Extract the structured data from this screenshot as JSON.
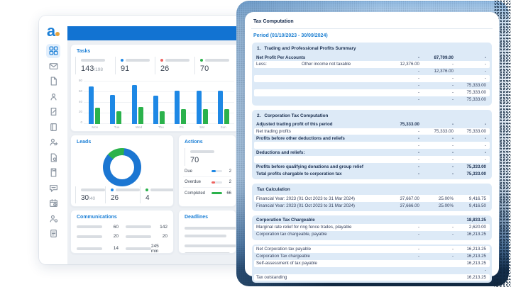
{
  "app": {
    "accent": "#1b7fd6",
    "navy": "#16304e",
    "topbar_color": "#1273d2"
  },
  "left": {
    "logo": "a",
    "active_icon": "dashboard",
    "sidebar_icons": [
      "dashboard",
      "mail",
      "document",
      "contacts",
      "edit-document",
      "ledger",
      "add-user",
      "report",
      "bookmark-document",
      "chat",
      "calendar",
      "user-settings",
      "file-text"
    ],
    "tasks": {
      "title": "Tasks",
      "stats": [
        {
          "value": "143",
          "suffix": "/198"
        },
        {
          "value": "91",
          "dot": "#1e88e5"
        },
        {
          "value": "26",
          "dot": "#ef6461"
        },
        {
          "value": "70",
          "dot": "#2bb24c"
        }
      ],
      "chart": {
        "type": "bar",
        "categories": [
          "Mon",
          "Tue",
          "Wed",
          "Thu",
          "Fri",
          "Sat",
          "Sun"
        ],
        "series": [
          {
            "name": "primary",
            "color": "#1e88e5",
            "values": [
              70,
              54,
              73,
              53,
              63,
              63,
              63
            ]
          },
          {
            "name": "secondary",
            "color": "#2bb24c",
            "values": [
              31,
              24,
              32,
              24,
              28,
              28,
              28
            ]
          }
        ],
        "yticks": [
          0,
          20,
          40,
          60,
          80
        ],
        "ymax": 80
      }
    },
    "leads": {
      "title": "Leads",
      "donut": {
        "start_deg": 312,
        "segments": [
          {
            "color": "#2bb24c",
            "deg": 55
          },
          {
            "color": "#1b76d2",
            "deg": 305
          }
        ]
      },
      "stats": [
        {
          "value": "30",
          "suffix": "/40"
        },
        {
          "value": "26",
          "dot": "#1e88e5"
        },
        {
          "value": "4",
          "dot": "#2bb24c"
        }
      ]
    },
    "actions": {
      "title": "Actions",
      "stat": {
        "value": "70"
      },
      "rows": [
        {
          "label": "Due",
          "value": "2",
          "color": "#1e88e5",
          "pct": 38
        },
        {
          "label": "Overdue",
          "value": "2",
          "color": "#ef6461",
          "pct": 30
        },
        {
          "label": "Completed",
          "value": "66",
          "color": "#2bb24c",
          "pct": 100
        }
      ]
    },
    "communications": {
      "title": "Communications",
      "rows": [
        {
          "left": "60",
          "right": "142"
        },
        {
          "left": "20",
          "right": "20"
        },
        {
          "left": "14",
          "right": "245 min"
        }
      ]
    },
    "deadlines": {
      "title": "Deadlines",
      "bars": [
        96,
        74,
        96,
        80
      ]
    }
  },
  "right": {
    "title": "Tax Computation",
    "period": "Period (01/10/2023 - 30/09/2024)",
    "sections": [
      {
        "num": "1.",
        "header": "Trading and Professional Profits Summary",
        "rows": [
          {
            "l": "Net Profit Per Accounts",
            "c1": "-",
            "c2": "87,709.00",
            "c3": "-",
            "b": true
          },
          {
            "l": "Less:",
            "l2": "Other income not taxable",
            "c1": "12,376.00",
            "c2": "-",
            "c3": "-"
          },
          {
            "l": "",
            "c1": "-",
            "c2": "12,376.00",
            "c3": "-"
          },
          {
            "l": "",
            "c1": "-",
            "c2": "-",
            "c3": "-"
          },
          {
            "l": "",
            "c1": "-",
            "c2": "-",
            "c3": "75,333.00"
          },
          {
            "l": "",
            "c1": "-",
            "c2": "-",
            "c3": "75,333.00"
          },
          {
            "l": "",
            "c1": "-",
            "c2": "-",
            "c3": "75,333.00"
          }
        ]
      },
      {
        "num": "2.",
        "header": "Corporation Tax Computation",
        "rows": [
          {
            "l": "Adjusted trading profit of this period",
            "c1": "75,333.00",
            "c2": "-",
            "c3": "-",
            "b": true
          },
          {
            "l": "Net trading profits",
            "c1": "-",
            "c2": "75,333.00",
            "c3": "75,333.00"
          },
          {
            "l": "Profits before other deductions and reliefs",
            "c1": "-",
            "c2": "-",
            "c3": "-",
            "b": true
          },
          {
            "l": "",
            "c1": "-",
            "c2": "-",
            "c3": "-"
          },
          {
            "l": "Deductions and reliefs:",
            "c1": "-",
            "c2": "-",
            "c3": "-",
            "b": true
          },
          {
            "l": "",
            "c1": "-",
            "c2": "-",
            "c3": "-"
          },
          {
            "l": "Profits before qualifying donations and group relief",
            "c1": "-",
            "c2": "-",
            "c3": "75,333.00",
            "b": true
          },
          {
            "l": "Total profits chargable to corporation tax",
            "c1": "-",
            "c2": "-",
            "c3": "75,333.00",
            "b": true
          }
        ]
      },
      {
        "header": "Tax Calculation",
        "flip": true,
        "rows": [
          {
            "l": "Financial Year: 2023 (01 Oct 2023 to 31 Mar 2024)",
            "c1": "37,667.00",
            "c2": "25.00%",
            "c3": "9,416.75"
          },
          {
            "l": "Financial Year: 2023 (01 Oct 2023 to 31 Mar 2024)",
            "c1": "37,666.00",
            "c2": "25.00%",
            "c3": "9,416.50"
          }
        ]
      },
      {
        "rows": [
          {
            "l": "Corporation Tax Chargeable",
            "c1": "",
            "c2": "",
            "c3": "18,833.25",
            "b": true
          },
          {
            "l": "Marginal rate relief for ring fence trades, playable",
            "c1": "-",
            "c2": "-",
            "c3": "2,620.00"
          },
          {
            "l": "Corporation tax chargeable, payable",
            "c1": "-",
            "c2": "-",
            "c3": "16,213.25"
          }
        ]
      },
      {
        "flip": true,
        "rows": [
          {
            "l": "Net Corporation tax payable",
            "c1": "-",
            "c2": "-",
            "c3": "16,213.25"
          },
          {
            "l": "Corporation Tax chargeable",
            "c1": "-",
            "c2": "-",
            "c3": "16,213.25"
          },
          {
            "l": "Self-assessment of tax payable",
            "c1": "",
            "c2": "",
            "c3": "16,213.25"
          },
          {
            "l": "",
            "c1": "",
            "c2": "",
            "c3": "-"
          },
          {
            "l": "Tax outstanding",
            "c1": "",
            "c2": "",
            "c3": "16,213.25"
          }
        ]
      }
    ]
  }
}
